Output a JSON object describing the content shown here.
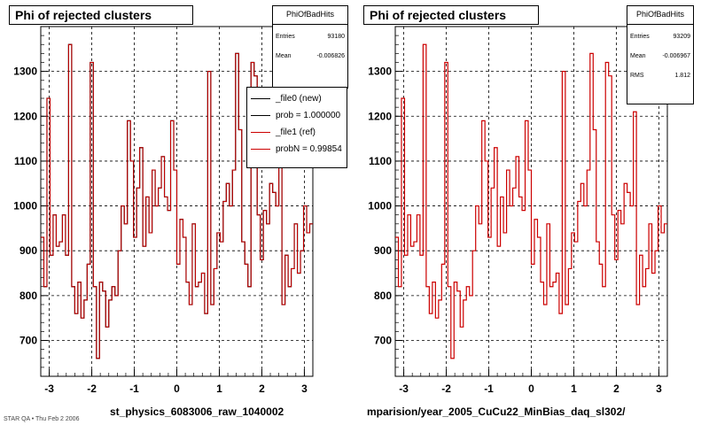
{
  "chart_data": [
    {
      "type": "line",
      "title": "Phi of rejected clusters",
      "xlabel": "st_physics_6083006_raw_1040002",
      "ylabel": "",
      "xlim": [
        -3.2,
        3.2
      ],
      "ylim": [
        620,
        1400
      ],
      "xticks": [
        "-3",
        "-2",
        "-1",
        "0",
        "1",
        "2",
        "3"
      ],
      "yticks": [
        "700",
        "800",
        "900",
        "1000",
        "1100",
        "1200",
        "1300"
      ],
      "grid": true,
      "stats": {
        "name": "PhiOfBadHits",
        "rows": [
          {
            "label": "Entries",
            "value": "93180"
          },
          {
            "label": "Mean",
            "value": "-0.006826"
          }
        ]
      },
      "legend": {
        "placement": "top-right",
        "entries": [
          "_file0 (new)",
          "prob = 1.000000",
          "_file1 (ref)",
          "probN = 0.99854"
        ]
      },
      "colors": {
        "new": "#000000",
        "ref": "#cc0000"
      },
      "series": [
        {
          "name": "_file0 (new)",
          "values": [
            930,
            820,
            1240,
            890,
            980,
            910,
            920,
            980,
            890,
            1360,
            820,
            760,
            830,
            750,
            790,
            870,
            1320,
            820,
            660,
            830,
            810,
            730,
            790,
            820,
            800,
            900,
            1000,
            960,
            1190,
            1100,
            930,
            1040,
            1130,
            910,
            1020,
            940,
            1080,
            1000,
            1040,
            1110,
            1020,
            990,
            1190,
            1080,
            870,
            970,
            930,
            830,
            780,
            960,
            820,
            830,
            850,
            760,
            1300,
            780,
            860,
            940,
            920,
            1010,
            1050,
            1000,
            1080,
            1340,
            1170,
            920,
            870,
            820,
            1320,
            1290,
            980,
            880,
            990,
            960,
            1050,
            1030,
            1000,
            1210,
            780,
            890,
            820,
            860,
            960,
            850,
            900,
            1000,
            940,
            960
          ]
        },
        {
          "name": "_file1 (ref)",
          "values": [
            930,
            820,
            1240,
            890,
            980,
            910,
            920,
            980,
            890,
            1360,
            820,
            760,
            830,
            750,
            790,
            870,
            1320,
            820,
            660,
            830,
            810,
            730,
            790,
            820,
            800,
            900,
            1000,
            960,
            1190,
            1100,
            930,
            1040,
            1130,
            910,
            1020,
            940,
            1080,
            1000,
            1040,
            1110,
            1020,
            990,
            1190,
            1080,
            870,
            970,
            930,
            830,
            780,
            960,
            820,
            830,
            850,
            760,
            1300,
            780,
            860,
            940,
            920,
            1010,
            1050,
            1000,
            1080,
            1340,
            1170,
            920,
            870,
            820,
            1320,
            1290,
            980,
            880,
            990,
            960,
            1050,
            1030,
            1000,
            1210,
            780,
            890,
            820,
            860,
            960,
            850,
            900,
            1000,
            940,
            960
          ]
        }
      ]
    },
    {
      "type": "line",
      "title": "Phi of rejected clusters",
      "xlabel": "mparision/year_2005_CuCu22_MinBias_daq_sl302/",
      "ylabel": "",
      "xlim": [
        -3.2,
        3.2
      ],
      "ylim": [
        620,
        1400
      ],
      "xticks": [
        "-3",
        "-2",
        "-1",
        "0",
        "1",
        "2",
        "3"
      ],
      "yticks": [
        "700",
        "800",
        "900",
        "1000",
        "1100",
        "1200",
        "1300"
      ],
      "grid": true,
      "stats": {
        "name": "PhiOfBadHits",
        "rows": [
          {
            "label": "Entries",
            "value": "93209"
          },
          {
            "label": "Mean",
            "value": "-0.006967"
          },
          {
            "label": "RMS",
            "value": "1.812"
          }
        ]
      },
      "colors": {
        "ref": "#cc0000"
      },
      "series": [
        {
          "name": "",
          "values": [
            930,
            820,
            1240,
            890,
            980,
            910,
            920,
            980,
            890,
            1360,
            820,
            760,
            830,
            750,
            790,
            870,
            1320,
            820,
            660,
            830,
            810,
            730,
            790,
            820,
            800,
            900,
            1000,
            960,
            1190,
            1100,
            930,
            1040,
            1130,
            910,
            1020,
            940,
            1080,
            1000,
            1040,
            1110,
            1020,
            990,
            1190,
            1080,
            870,
            970,
            930,
            830,
            780,
            960,
            820,
            830,
            850,
            760,
            1300,
            780,
            860,
            940,
            920,
            1010,
            1050,
            1000,
            1080,
            1340,
            1170,
            920,
            870,
            820,
            1320,
            1290,
            980,
            880,
            990,
            960,
            1050,
            1030,
            1000,
            1210,
            780,
            890,
            820,
            860,
            960,
            850,
            900,
            1000,
            940,
            960
          ]
        }
      ]
    }
  ],
  "footer_text": "STAR QA  • Thu Feb 2 2006"
}
